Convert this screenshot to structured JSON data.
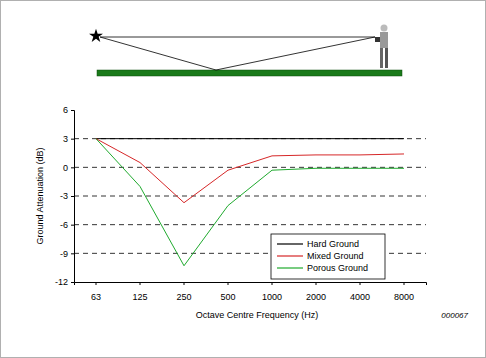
{
  "chart_data": {
    "type": "line",
    "xlabel": "Octave Centre Frequency (Hz)",
    "ylabel": "Ground Attenuation (dB)",
    "annotations": [
      "000067"
    ],
    "categories": [
      "63",
      "125",
      "250",
      "500",
      "1000",
      "2000",
      "4000",
      "8000"
    ],
    "series": [
      {
        "name": "Hard Ground",
        "color": "#000000",
        "values": [
          3,
          3,
          3,
          3,
          3,
          3,
          3,
          3
        ]
      },
      {
        "name": "Mixed Ground",
        "color": "#d62728",
        "values": [
          3,
          0.5,
          -3.7,
          -0.3,
          1.2,
          1.3,
          1.3,
          1.4
        ]
      },
      {
        "name": "Porous Ground",
        "color": "#1faa2e",
        "values": [
          3,
          -2,
          -10.3,
          -4,
          -0.3,
          -0.1,
          -0.1,
          -0.1
        ]
      }
    ],
    "ylim": [
      -12,
      6
    ],
    "yticks": [
      -12,
      -9,
      -6,
      -3,
      0,
      3,
      6
    ],
    "grid": true,
    "legend": "lower right"
  }
}
